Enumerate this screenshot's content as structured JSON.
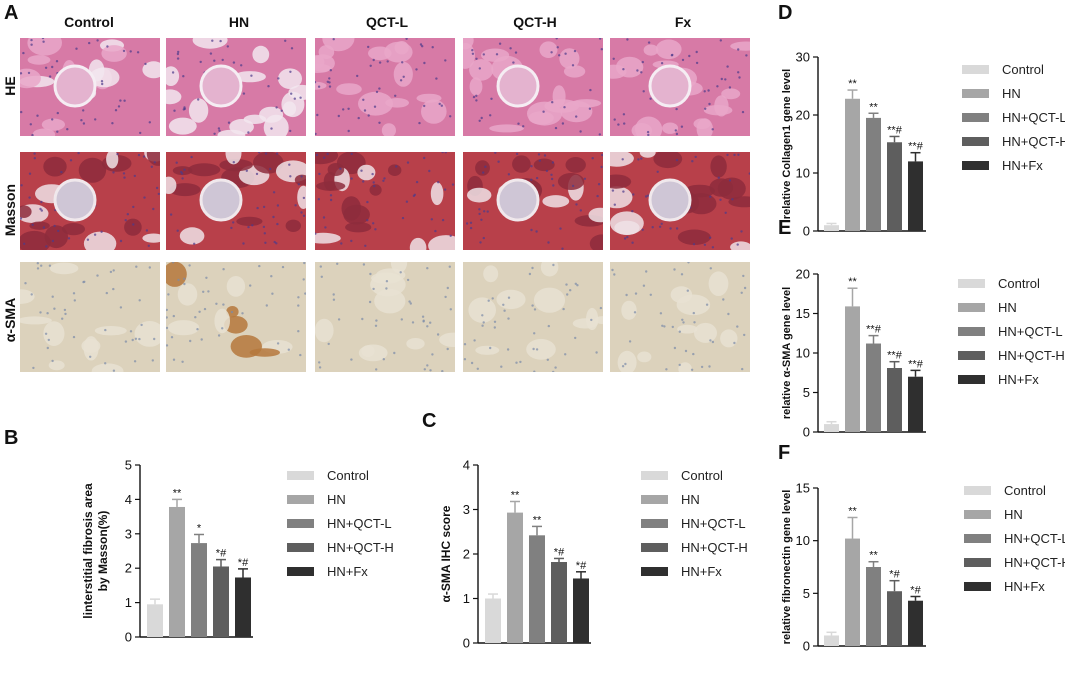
{
  "panel_letters": {
    "A": "A",
    "B": "B",
    "C": "C",
    "D": "D",
    "E": "E",
    "F": "F"
  },
  "image_grid": {
    "columns": [
      "Control",
      "HN",
      "QCT-L",
      "QCT-H",
      "Fx"
    ],
    "rows": [
      "HE",
      "Masson",
      "α-SMA"
    ]
  },
  "colors": {
    "control": "#d9d9d9",
    "hn": "#a6a6a6",
    "hn_qct_l": "#808080",
    "hn_qct_h": "#5e5e5e",
    "hn_fx": "#2f2f2f",
    "he_bg": "#d77aa6",
    "masson_bg": "#b8404a",
    "sma_bg": "#dcd2bc"
  },
  "chart_data": [
    {
      "id": "B",
      "type": "bar",
      "ylabel_line1": "linterstitial fibrosis area",
      "ylabel_line2": "by Masson(%)",
      "ylim": [
        0,
        5
      ],
      "yticks": [
        0,
        1,
        2,
        3,
        4,
        5
      ],
      "categories": [
        "Control",
        "HN",
        "HN+QCT-L",
        "HN+QCT-H",
        "HN+Fx"
      ],
      "values": [
        0.95,
        3.78,
        2.73,
        2.05,
        1.73
      ],
      "errors": [
        0.15,
        0.22,
        0.25,
        0.2,
        0.25
      ],
      "annotations": [
        "",
        "**",
        "*",
        "*#",
        "*#"
      ]
    },
    {
      "id": "C",
      "type": "bar",
      "ylabel_line1": "α-SMA IHC score",
      "ylabel_line2": "",
      "ylim": [
        0,
        4
      ],
      "yticks": [
        0,
        1,
        2,
        3,
        4
      ],
      "categories": [
        "Control",
        "HN",
        "HN+QCT-L",
        "HN+QCT-H",
        "HN+Fx"
      ],
      "values": [
        1.0,
        2.93,
        2.42,
        1.82,
        1.45
      ],
      "errors": [
        0.1,
        0.25,
        0.2,
        0.08,
        0.15
      ],
      "annotations": [
        "",
        "**",
        "**",
        "*#",
        "*#"
      ]
    },
    {
      "id": "D",
      "type": "bar",
      "ylabel_line1": "relative Collagen1 gene level",
      "ylabel_line2": "",
      "ylim": [
        0,
        30
      ],
      "yticks": [
        0,
        10,
        20,
        30
      ],
      "categories": [
        "Control",
        "HN",
        "HN+QCT-L",
        "HN+QCT-H",
        "HN+Fx"
      ],
      "values": [
        1.0,
        22.8,
        19.5,
        15.3,
        12.0
      ],
      "errors": [
        0.3,
        1.5,
        0.8,
        1.0,
        1.5
      ],
      "annotations": [
        "",
        "**",
        "**",
        "**#",
        "**#"
      ]
    },
    {
      "id": "E",
      "type": "bar",
      "ylabel_line1": "relative α-SMA gene level",
      "ylabel_line2": "",
      "ylim": [
        0,
        20
      ],
      "yticks": [
        0,
        5,
        10,
        15,
        20
      ],
      "categories": [
        "Control",
        "HN",
        "HN+QCT-L",
        "HN+QCT-H",
        "HN+Fx"
      ],
      "values": [
        1.0,
        15.9,
        11.2,
        8.1,
        7.0
      ],
      "errors": [
        0.3,
        2.3,
        1.0,
        0.8,
        0.8
      ],
      "annotations": [
        "",
        "**",
        "**#",
        "**#",
        "**#"
      ]
    },
    {
      "id": "F",
      "type": "bar",
      "ylabel_line1": "relative fibronectin gene level",
      "ylabel_line2": "",
      "ylim": [
        0,
        15
      ],
      "yticks": [
        0,
        5,
        10,
        15
      ],
      "categories": [
        "Control",
        "HN",
        "HN+QCT-L",
        "HN+QCT-H",
        "HN+Fx"
      ],
      "values": [
        1.0,
        10.2,
        7.5,
        5.2,
        4.3
      ],
      "errors": [
        0.3,
        2.0,
        0.5,
        1.0,
        0.4
      ],
      "annotations": [
        "",
        "**",
        "**",
        "*#",
        "*#"
      ]
    }
  ]
}
